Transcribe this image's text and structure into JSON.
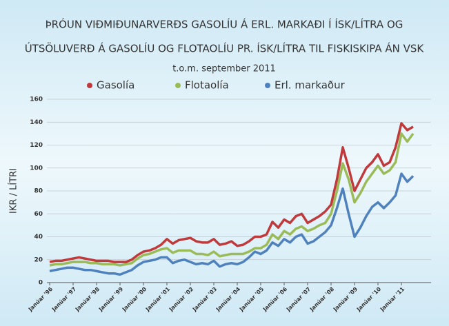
{
  "chart_data": {
    "type": "line",
    "title": [
      "ÞRÓUN VIÐMIÐUNARVERÐS GASOLÍU Á ERL. MARKAÐI Í ÍSK/LÍTRA OG",
      "ÚTSÖLUVERÐ Á GASOLÍU OG FLOTAOLÍU PR. ÍSK/LÍTRA TIL FISKISKIPA ÁN VSK"
    ],
    "subtitle": "t.o.m. september 2011",
    "y_label": "IKR / LÍTRI",
    "categories": [
      "Janúar '96",
      null,
      null,
      null,
      "Janúar '97",
      null,
      null,
      null,
      "Janúar '98",
      null,
      null,
      null,
      "Janúar '99",
      null,
      null,
      null,
      "Janúar '00",
      null,
      null,
      null,
      "Janúar '01",
      null,
      null,
      null,
      "Janúar '02",
      null,
      null,
      null,
      "Janúar '03",
      null,
      null,
      null,
      "Janúar '04",
      null,
      null,
      null,
      "Janúar '05",
      null,
      null,
      null,
      "Janúar '06",
      null,
      null,
      null,
      "Janúar '07",
      null,
      null,
      null,
      "Janúar '08",
      null,
      null,
      null,
      "Janúar '09",
      null,
      null,
      null,
      "Janúar '10",
      null,
      null,
      null,
      "Janúar '11",
      null,
      null
    ],
    "series": [
      {
        "name": "Gasolía",
        "color": "#c0393b",
        "values": [
          18,
          19,
          19,
          20,
          21,
          22,
          21,
          20,
          19,
          19,
          19,
          18,
          18,
          18,
          20,
          24,
          27,
          28,
          30,
          33,
          38,
          34,
          37,
          38,
          39,
          36,
          35,
          35,
          38,
          33,
          34,
          36,
          32,
          33,
          36,
          40,
          40,
          42,
          53,
          48,
          55,
          52,
          58,
          60,
          52,
          55,
          58,
          62,
          68,
          90,
          118,
          100,
          80,
          90,
          100,
          105,
          112,
          102,
          105,
          118,
          139,
          133,
          136
        ]
      },
      {
        "name": "Flotaolía",
        "color": "#9bbb59",
        "values": [
          15,
          16,
          16,
          17,
          18,
          18,
          18,
          17,
          17,
          16,
          16,
          16,
          15,
          16,
          17,
          21,
          24,
          25,
          27,
          29,
          30,
          26,
          28,
          28,
          28,
          25,
          25,
          24,
          27,
          23,
          24,
          25,
          25,
          25,
          27,
          30,
          30,
          33,
          42,
          38,
          45,
          42,
          47,
          49,
          45,
          47,
          50,
          52,
          60,
          80,
          104,
          90,
          70,
          78,
          88,
          95,
          102,
          95,
          98,
          105,
          130,
          123,
          130
        ]
      },
      {
        "name": "Erl. markaður",
        "color": "#4f81bd",
        "values": [
          10,
          11,
          12,
          13,
          13,
          12,
          11,
          11,
          10,
          9,
          8,
          8,
          7,
          9,
          11,
          15,
          18,
          19,
          20,
          22,
          22,
          17,
          19,
          20,
          18,
          16,
          17,
          16,
          19,
          14,
          16,
          17,
          16,
          18,
          22,
          27,
          25,
          28,
          35,
          32,
          38,
          35,
          40,
          42,
          34,
          36,
          40,
          44,
          50,
          65,
          82,
          60,
          40,
          48,
          58,
          66,
          70,
          65,
          70,
          76,
          95,
          88,
          93
        ]
      }
    ],
    "ylim": [
      0,
      160
    ],
    "yticks": [
      0,
      20,
      40,
      60,
      80,
      100,
      120,
      140,
      160
    ],
    "grid": true
  }
}
